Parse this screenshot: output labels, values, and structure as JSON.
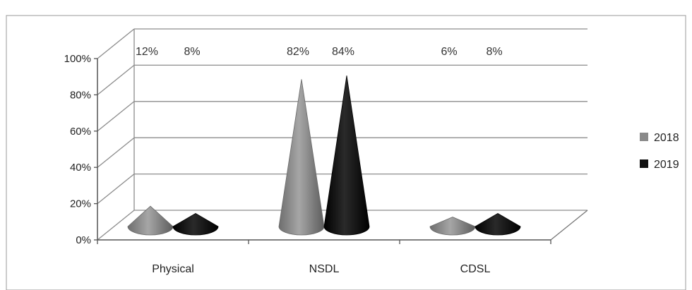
{
  "chart_data": {
    "type": "bar",
    "style": "3d-cone",
    "title": "",
    "xlabel": "",
    "ylabel": "",
    "categories": [
      "Physical",
      "NSDL",
      "CDSL"
    ],
    "series": [
      {
        "name": "2018",
        "values": [
          12,
          82,
          6
        ],
        "labels": [
          "12%",
          "82%",
          "6%"
        ],
        "color": "#8a8a8a"
      },
      {
        "name": "2019",
        "values": [
          8,
          84,
          8
        ],
        "labels": [
          "8%",
          "84%",
          "8%"
        ],
        "color": "#111111"
      }
    ],
    "ylim": [
      0,
      100
    ],
    "yticks": [
      "0%",
      "20%",
      "40%",
      "60%",
      "80%",
      "100%"
    ],
    "grid": true,
    "legend": "right"
  }
}
